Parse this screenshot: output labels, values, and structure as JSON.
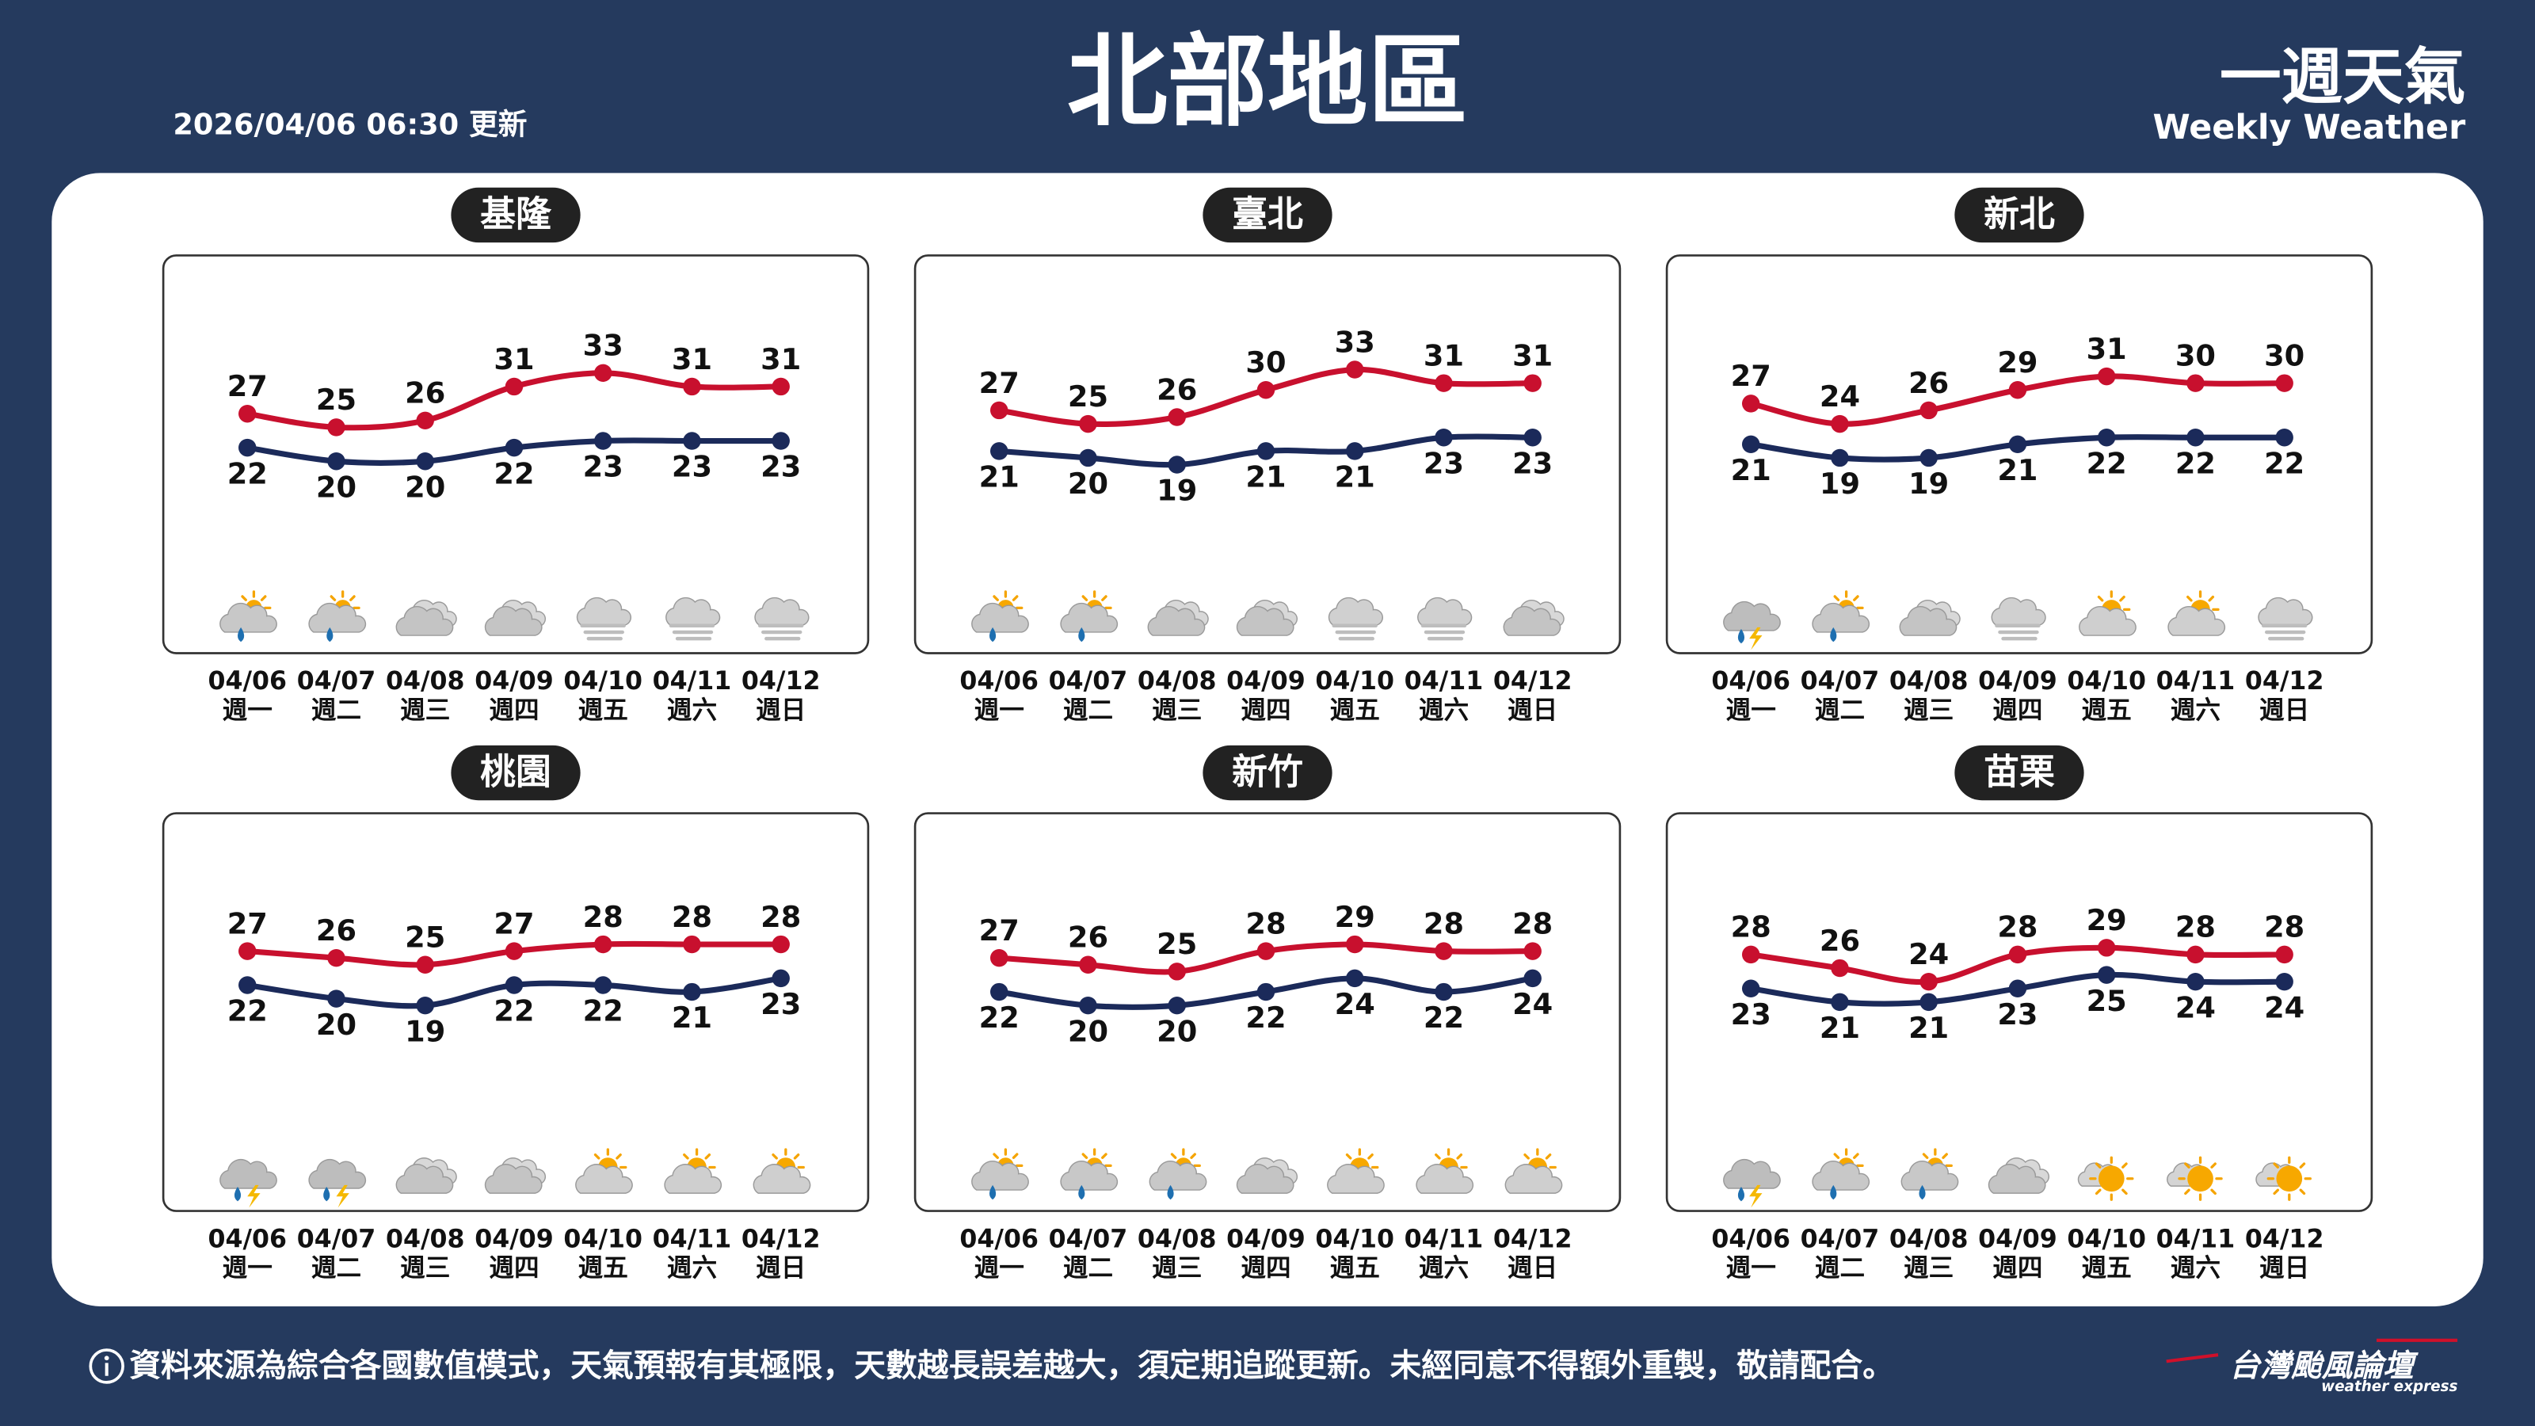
{
  "header": {
    "title": "北部地區",
    "updated": "2026/04/06 06:30 更新",
    "brand": "一週天氣",
    "brand_en": "Weekly Weather"
  },
  "chart_data": [
    {
      "type": "line",
      "title": "基隆",
      "categories": [
        "04/06",
        "04/07",
        "04/08",
        "04/09",
        "04/10",
        "04/11",
        "04/12"
      ],
      "weekdays": [
        "週一",
        "週二",
        "週三",
        "週四",
        "週五",
        "週六",
        "週日"
      ],
      "series": [
        {
          "color": "#c8102e",
          "values": [
            27,
            25,
            26,
            31,
            33,
            31,
            31
          ]
        },
        {
          "color": "#1b2a5a",
          "values": [
            22,
            20,
            20,
            22,
            23,
            23,
            23
          ]
        }
      ]
    },
    {
      "type": "line",
      "title": "臺北",
      "categories": [
        "04/06",
        "04/07",
        "04/08",
        "04/09",
        "04/10",
        "04/11",
        "04/12"
      ],
      "weekdays": [
        "週一",
        "週二",
        "週三",
        "週四",
        "週五",
        "週六",
        "週日"
      ],
      "series": [
        {
          "color": "#c8102e",
          "values": [
            27,
            25,
            26,
            30,
            33,
            31,
            31
          ]
        },
        {
          "color": "#1b2a5a",
          "values": [
            21,
            20,
            19,
            21,
            21,
            23,
            23
          ]
        }
      ]
    },
    {
      "type": "line",
      "title": "新北",
      "categories": [
        "04/06",
        "04/07",
        "04/08",
        "04/09",
        "04/10",
        "04/11",
        "04/12"
      ],
      "weekdays": [
        "週一",
        "週二",
        "週三",
        "週四",
        "週五",
        "週六",
        "週日"
      ],
      "series": [
        {
          "color": "#c8102e",
          "values": [
            27,
            24,
            26,
            29,
            31,
            30,
            30
          ]
        },
        {
          "color": "#1b2a5a",
          "values": [
            21,
            19,
            19,
            21,
            22,
            22,
            22
          ]
        }
      ]
    },
    {
      "type": "line",
      "title": "桃園",
      "categories": [
        "04/06",
        "04/07",
        "04/08",
        "04/09",
        "04/10",
        "04/11",
        "04/12"
      ],
      "weekdays": [
        "週一",
        "週二",
        "週三",
        "週四",
        "週五",
        "週六",
        "週日"
      ],
      "series": [
        {
          "color": "#c8102e",
          "values": [
            27,
            26,
            25,
            27,
            28,
            28,
            28
          ]
        },
        {
          "color": "#1b2a5a",
          "values": [
            22,
            20,
            19,
            22,
            22,
            21,
            23
          ]
        }
      ]
    },
    {
      "type": "line",
      "title": "新竹",
      "categories": [
        "04/06",
        "04/07",
        "04/08",
        "04/09",
        "04/10",
        "04/11",
        "04/12"
      ],
      "weekdays": [
        "週一",
        "週二",
        "週三",
        "週四",
        "週五",
        "週六",
        "週日"
      ],
      "series": [
        {
          "color": "#c8102e",
          "values": [
            27,
            26,
            25,
            28,
            29,
            28,
            28
          ]
        },
        {
          "color": "#1b2a5a",
          "values": [
            22,
            20,
            20,
            22,
            24,
            22,
            24
          ]
        }
      ]
    },
    {
      "type": "line",
      "title": "苗栗",
      "categories": [
        "04/06",
        "04/07",
        "04/08",
        "04/09",
        "04/10",
        "04/11",
        "04/12"
      ],
      "weekdays": [
        "週一",
        "週二",
        "週三",
        "週四",
        "週五",
        "週六",
        "週日"
      ],
      "series": [
        {
          "color": "#c8102e",
          "values": [
            28,
            26,
            24,
            28,
            29,
            28,
            28
          ]
        },
        {
          "color": "#1b2a5a",
          "values": [
            23,
            21,
            21,
            23,
            25,
            24,
            24
          ]
        }
      ]
    }
  ],
  "footer": {
    "disclaimer": "資料來源為綜合各國數值模式，天氣預報有其極限，天數越長誤差越大，須定期追蹤更新。未經同意不得額外重製，敬請配合。",
    "logo": "台灣颱風論壇",
    "logo_en": "weather express"
  }
}
